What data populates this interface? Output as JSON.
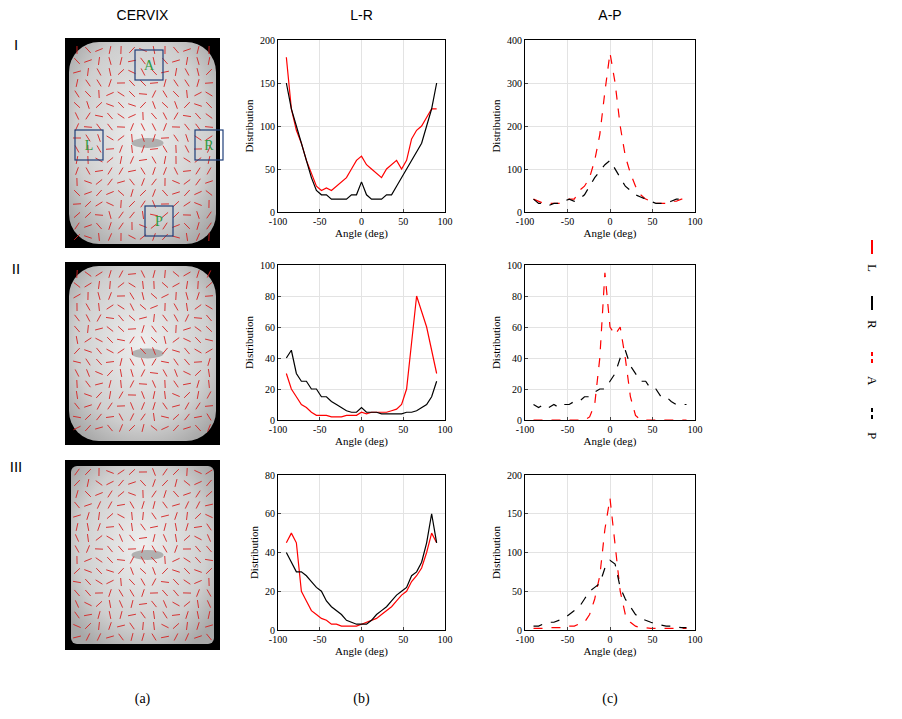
{
  "figure": {
    "column_titles": [
      "CERVIX",
      "L-R",
      "A-P"
    ],
    "row_labels": [
      "I",
      "II",
      "III"
    ],
    "panel_labels": [
      "(a)",
      "(b)",
      "(c)"
    ],
    "roi_labels": [
      "A",
      "L",
      "R",
      "P"
    ]
  },
  "chart_data": [
    {
      "type": "line",
      "xlabel": "Angle (deg)",
      "ylabel": "Distribution",
      "x": [
        -90,
        -84,
        -78,
        -72,
        -66,
        -60,
        -54,
        -48,
        -42,
        -36,
        -30,
        -24,
        -18,
        -12,
        -6,
        0,
        6,
        12,
        18,
        24,
        30,
        36,
        42,
        48,
        54,
        60,
        66,
        72,
        78,
        84,
        90
      ],
      "xlim": [
        -100,
        100
      ],
      "xticks": [
        -100,
        -50,
        0,
        50,
        100
      ],
      "ylim": [
        0,
        200
      ],
      "yticks": [
        0,
        50,
        100,
        150,
        200
      ],
      "grid": true,
      "legend": "right",
      "series": [
        {
          "name": "L",
          "color": "#ff0000",
          "line_style": "solid",
          "values": [
            180,
            120,
            95,
            80,
            60,
            45,
            30,
            25,
            28,
            25,
            30,
            35,
            40,
            50,
            60,
            65,
            55,
            50,
            45,
            40,
            50,
            55,
            60,
            50,
            60,
            85,
            95,
            100,
            110,
            120,
            120
          ]
        },
        {
          "name": "R",
          "color": "#000000",
          "line_style": "solid",
          "values": [
            150,
            120,
            100,
            80,
            60,
            40,
            25,
            20,
            20,
            15,
            15,
            15,
            15,
            20,
            20,
            35,
            20,
            15,
            15,
            15,
            20,
            20,
            30,
            40,
            50,
            60,
            70,
            80,
            100,
            120,
            150
          ]
        }
      ]
    },
    {
      "type": "line",
      "xlabel": "Angle (deg)",
      "ylabel": "Distribution",
      "x": [
        -90,
        -84,
        -78,
        -72,
        -66,
        -60,
        -54,
        -48,
        -42,
        -36,
        -30,
        -24,
        -18,
        -12,
        -6,
        0,
        6,
        12,
        18,
        24,
        30,
        36,
        42,
        48,
        54,
        60,
        66,
        72,
        78,
        84,
        90
      ],
      "xlim": [
        -100,
        100
      ],
      "xticks": [
        -100,
        -50,
        0,
        50,
        100
      ],
      "ylim": [
        0,
        400
      ],
      "yticks": [
        0,
        100,
        200,
        300,
        400
      ],
      "grid": true,
      "legend": "right",
      "series": [
        {
          "name": "A",
          "color": "#ff0000",
          "line_style": "dash",
          "values": [
            30,
            25,
            20,
            20,
            20,
            20,
            25,
            30,
            30,
            50,
            60,
            80,
            120,
            180,
            280,
            370,
            300,
            200,
            130,
            90,
            60,
            40,
            30,
            25,
            20,
            20,
            20,
            25,
            25,
            30,
            30
          ]
        },
        {
          "name": "P",
          "color": "#000000",
          "line_style": "dash",
          "values": [
            30,
            20,
            20,
            15,
            20,
            20,
            25,
            30,
            25,
            30,
            40,
            60,
            80,
            95,
            110,
            120,
            100,
            80,
            60,
            50,
            40,
            35,
            30,
            25,
            20,
            20,
            20,
            25,
            30,
            30,
            35
          ]
        }
      ]
    },
    {
      "type": "line",
      "xlabel": "Angle (deg)",
      "ylabel": "Distribution",
      "x": [
        -90,
        -84,
        -78,
        -72,
        -66,
        -60,
        -54,
        -48,
        -42,
        -36,
        -30,
        -24,
        -18,
        -12,
        -6,
        0,
        6,
        12,
        18,
        24,
        30,
        36,
        42,
        48,
        54,
        60,
        66,
        72,
        78,
        84,
        90
      ],
      "xlim": [
        -100,
        100
      ],
      "xticks": [
        -100,
        -50,
        0,
        50,
        100
      ],
      "ylim": [
        0,
        100
      ],
      "yticks": [
        0,
        20,
        40,
        60,
        80,
        100
      ],
      "grid": true,
      "legend": "right",
      "series": [
        {
          "name": "L",
          "color": "#ff0000",
          "line_style": "solid",
          "values": [
            30,
            20,
            15,
            10,
            8,
            5,
            3,
            3,
            3,
            2,
            2,
            2,
            3,
            3,
            3,
            5,
            4,
            5,
            5,
            5,
            5,
            6,
            7,
            10,
            20,
            50,
            80,
            70,
            60,
            45,
            30
          ]
        },
        {
          "name": "R",
          "color": "#000000",
          "line_style": "solid",
          "values": [
            40,
            45,
            30,
            25,
            25,
            20,
            20,
            15,
            15,
            12,
            10,
            8,
            6,
            5,
            5,
            8,
            5,
            5,
            5,
            4,
            4,
            4,
            4,
            4,
            5,
            5,
            6,
            8,
            10,
            15,
            25
          ]
        }
      ]
    },
    {
      "type": "line",
      "xlabel": "Angle (deg)",
      "ylabel": "Distribution",
      "x": [
        -90,
        -84,
        -78,
        -72,
        -66,
        -60,
        -54,
        -48,
        -42,
        -36,
        -30,
        -24,
        -18,
        -12,
        -6,
        0,
        6,
        12,
        18,
        24,
        30,
        36,
        42,
        48,
        54,
        60,
        66,
        72,
        78,
        84,
        90
      ],
      "xlim": [
        -100,
        100
      ],
      "xticks": [
        -100,
        -50,
        0,
        50,
        100
      ],
      "ylim": [
        0,
        100
      ],
      "yticks": [
        0,
        20,
        40,
        60,
        80,
        100
      ],
      "grid": true,
      "legend": "right",
      "series": [
        {
          "name": "A",
          "color": "#ff0000",
          "line_style": "dash",
          "values": [
            0,
            0,
            0,
            0,
            0,
            0,
            0,
            0,
            0,
            0,
            0,
            2,
            10,
            40,
            95,
            60,
            55,
            60,
            40,
            15,
            3,
            0,
            0,
            0,
            0,
            0,
            0,
            0,
            0,
            0,
            0
          ]
        },
        {
          "name": "P",
          "color": "#000000",
          "line_style": "dash",
          "values": [
            10,
            8,
            10,
            8,
            10,
            8,
            10,
            10,
            12,
            12,
            15,
            15,
            18,
            20,
            20,
            25,
            30,
            40,
            45,
            35,
            30,
            25,
            25,
            20,
            20,
            15,
            15,
            12,
            10,
            10,
            10
          ]
        }
      ]
    },
    {
      "type": "line",
      "xlabel": "Angle (deg)",
      "ylabel": "Distribution",
      "x": [
        -90,
        -84,
        -78,
        -72,
        -66,
        -60,
        -54,
        -48,
        -42,
        -36,
        -30,
        -24,
        -18,
        -12,
        -6,
        0,
        6,
        12,
        18,
        24,
        30,
        36,
        42,
        48,
        54,
        60,
        66,
        72,
        78,
        84,
        90
      ],
      "xlim": [
        -100,
        100
      ],
      "xticks": [
        -100,
        -50,
        0,
        50,
        100
      ],
      "ylim": [
        0,
        80
      ],
      "yticks": [
        0,
        20,
        40,
        60,
        80
      ],
      "grid": true,
      "legend": "right",
      "series": [
        {
          "name": "L",
          "color": "#ff0000",
          "line_style": "solid",
          "values": [
            45,
            50,
            45,
            20,
            15,
            10,
            8,
            6,
            5,
            3,
            3,
            2,
            2,
            2,
            2,
            3,
            4,
            5,
            6,
            8,
            10,
            12,
            15,
            18,
            20,
            25,
            28,
            32,
            40,
            50,
            45
          ]
        },
        {
          "name": "R",
          "color": "#000000",
          "line_style": "solid",
          "values": [
            40,
            35,
            30,
            30,
            28,
            25,
            22,
            20,
            15,
            12,
            10,
            8,
            5,
            4,
            3,
            3,
            3,
            5,
            8,
            10,
            12,
            15,
            18,
            20,
            22,
            28,
            30,
            35,
            45,
            60,
            45
          ]
        }
      ]
    },
    {
      "type": "line",
      "xlabel": "Angle (deg)",
      "ylabel": "Distribution",
      "x": [
        -90,
        -84,
        -78,
        -72,
        -66,
        -60,
        -54,
        -48,
        -42,
        -36,
        -30,
        -24,
        -18,
        -12,
        -6,
        0,
        6,
        12,
        18,
        24,
        30,
        36,
        42,
        48,
        54,
        60,
        66,
        72,
        78,
        84,
        90
      ],
      "xlim": [
        -100,
        100
      ],
      "xticks": [
        -100,
        -50,
        0,
        50,
        100
      ],
      "ylim": [
        0,
        200
      ],
      "yticks": [
        0,
        50,
        100,
        150,
        200
      ],
      "grid": true,
      "legend": "right",
      "series": [
        {
          "name": "A",
          "color": "#ff0000",
          "line_style": "dash",
          "values": [
            2,
            2,
            2,
            3,
            3,
            3,
            3,
            5,
            5,
            8,
            10,
            20,
            40,
            70,
            130,
            170,
            110,
            50,
            20,
            10,
            5,
            3,
            3,
            2,
            2,
            2,
            2,
            2,
            2,
            2,
            2
          ]
        },
        {
          "name": "P",
          "color": "#000000",
          "line_style": "dash",
          "values": [
            5,
            5,
            8,
            10,
            10,
            12,
            15,
            20,
            25,
            30,
            40,
            50,
            55,
            60,
            80,
            90,
            85,
            55,
            40,
            30,
            20,
            15,
            12,
            10,
            8,
            6,
            5,
            5,
            4,
            3,
            3
          ]
        }
      ]
    }
  ]
}
